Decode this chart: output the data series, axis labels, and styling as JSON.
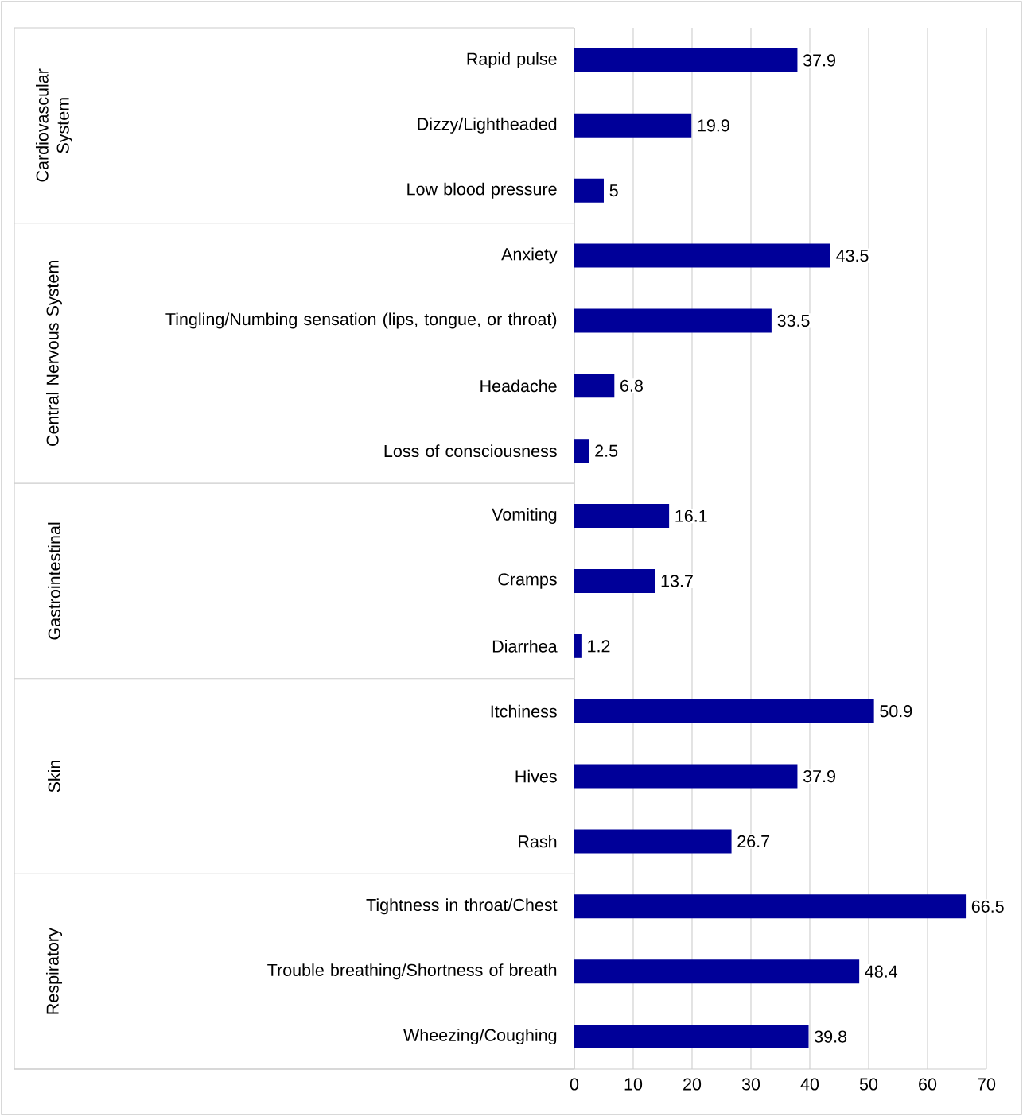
{
  "chart_data": {
    "type": "bar",
    "orientation": "horizontal",
    "categories": [
      "Rapid pulse",
      "Dizzy/Lightheaded",
      "Low blood pressure",
      "Anxiety",
      "Tingling/Numbing sensation (lips, tongue, or throat)",
      "Headache",
      "Loss of consciousness",
      "Vomiting",
      "Cramps",
      "Diarrhea",
      "Itchiness",
      "Hives",
      "Rash",
      "Tightness in throat/Chest",
      "Trouble breathing/Shortness of breath",
      "Wheezing/Coughing"
    ],
    "values": [
      37.9,
      19.9,
      5,
      43.5,
      33.5,
      6.8,
      2.5,
      16.1,
      13.7,
      1.2,
      50.9,
      37.9,
      26.7,
      66.5,
      48.4,
      39.8
    ],
    "color": "#000099",
    "xlim": [
      0,
      70
    ],
    "xticks": [
      0,
      10,
      20,
      30,
      40,
      50,
      60,
      70
    ],
    "grid": "x",
    "data_labels": true,
    "annotations": [
      "Cardiovascular System",
      "Central Nervous System",
      "Gastrointestinal",
      "Skin",
      "Respiratory"
    ]
  }
}
